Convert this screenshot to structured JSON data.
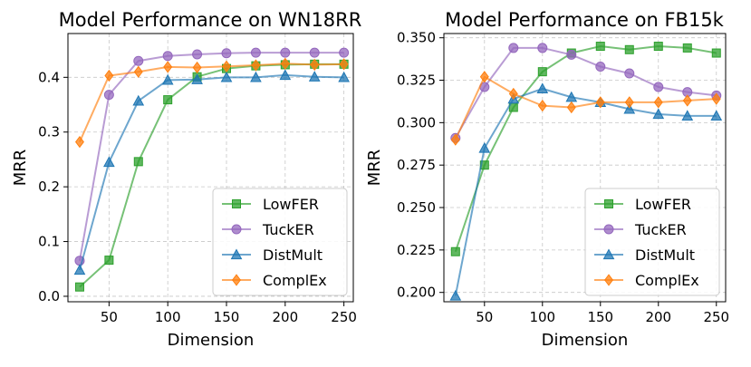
{
  "chart_data": [
    {
      "type": "line",
      "title": "Model Performance on WN18RR",
      "xlabel": "Dimension",
      "ylabel": "MRR",
      "xlim": [
        15,
        258
      ],
      "ylim": [
        -0.01,
        0.48
      ],
      "xticks": [
        50,
        100,
        150,
        200,
        250
      ],
      "xtick_labels": [
        "50",
        "100",
        "150",
        "200",
        "250"
      ],
      "yticks": [
        0.0,
        0.1,
        0.2,
        0.3,
        0.4
      ],
      "ytick_labels": [
        "0.0",
        "0.1",
        "0.2",
        "0.3",
        "0.4"
      ],
      "grid": true,
      "legend_position": "bottom-right",
      "x": [
        25,
        50,
        75,
        100,
        125,
        150,
        175,
        200,
        225,
        250
      ],
      "series": [
        {
          "name": "LowFER",
          "color": "#2ca02c",
          "marker": "square",
          "values": [
            0.017,
            0.066,
            0.246,
            0.359,
            0.401,
            0.416,
            0.421,
            0.423,
            0.424,
            0.424
          ]
        },
        {
          "name": "TuckER",
          "color": "#9467bd",
          "marker": "circle",
          "values": [
            0.065,
            0.368,
            0.43,
            0.439,
            0.442,
            0.444,
            0.445,
            0.445,
            0.445,
            0.445
          ]
        },
        {
          "name": "DistMult",
          "color": "#1f77b4",
          "marker": "triangle",
          "values": [
            0.048,
            0.245,
            0.357,
            0.395,
            0.396,
            0.4,
            0.4,
            0.404,
            0.401,
            0.4
          ]
        },
        {
          "name": "ComplEx",
          "color": "#ff7f0e",
          "marker": "diamond",
          "values": [
            0.282,
            0.403,
            0.41,
            0.419,
            0.418,
            0.42,
            0.422,
            0.425,
            0.423,
            0.424
          ]
        }
      ]
    },
    {
      "type": "line",
      "title": "Model Performance on FB15k",
      "xlabel": "Dimension",
      "ylabel": "MRR",
      "xlim": [
        15,
        258
      ],
      "ylim": [
        0.1945,
        0.3525
      ],
      "xticks": [
        50,
        100,
        150,
        200,
        250
      ],
      "xtick_labels": [
        "50",
        "100",
        "150",
        "200",
        "250"
      ],
      "yticks": [
        0.2,
        0.225,
        0.25,
        0.275,
        0.3,
        0.325,
        0.35
      ],
      "ytick_labels": [
        "0.200",
        "0.225",
        "0.250",
        "0.275",
        "0.300",
        "0.325",
        "0.350"
      ],
      "grid": true,
      "legend_position": "bottom-right",
      "x": [
        25,
        50,
        75,
        100,
        125,
        150,
        175,
        200,
        225,
        250
      ],
      "series": [
        {
          "name": "LowFER",
          "color": "#2ca02c",
          "marker": "square",
          "values": [
            0.224,
            0.275,
            0.309,
            0.33,
            0.341,
            0.345,
            0.343,
            0.345,
            0.344,
            0.341
          ]
        },
        {
          "name": "TuckER",
          "color": "#9467bd",
          "marker": "circle",
          "values": [
            0.291,
            0.321,
            0.344,
            0.344,
            0.34,
            0.333,
            0.329,
            0.321,
            0.318,
            0.316
          ]
        },
        {
          "name": "DistMult",
          "color": "#1f77b4",
          "marker": "triangle",
          "values": [
            0.198,
            0.285,
            0.314,
            0.32,
            0.315,
            0.312,
            0.308,
            0.305,
            0.304,
            0.304
          ]
        },
        {
          "name": "ComplEx",
          "color": "#ff7f0e",
          "marker": "diamond",
          "values": [
            0.29,
            0.327,
            0.317,
            0.31,
            0.309,
            0.312,
            0.312,
            0.312,
            0.313,
            0.314
          ]
        }
      ]
    }
  ]
}
